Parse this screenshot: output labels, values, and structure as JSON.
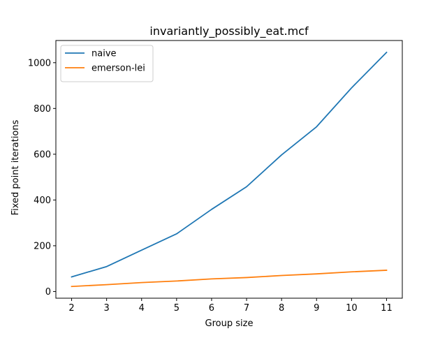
{
  "chart_data": {
    "type": "line",
    "title": "invariantly_possibly_eat.mcf",
    "xlabel": "Group size",
    "ylabel": "Fixed point iterations",
    "x": [
      2,
      3,
      4,
      5,
      6,
      7,
      8,
      9,
      10,
      11
    ],
    "xlim": [
      1.55,
      11.45
    ],
    "ylim": [
      -29.2,
      1097
    ],
    "xticks": [
      2,
      3,
      4,
      5,
      6,
      7,
      8,
      9,
      10,
      11
    ],
    "yticks": [
      0,
      200,
      400,
      600,
      800,
      1000
    ],
    "grid": false,
    "legend_position": "top-left",
    "series": [
      {
        "name": "naive",
        "color": "#1f77b4",
        "values": [
          64,
          109,
          181,
          252,
          359,
          458,
          597,
          720,
          890,
          1045
        ]
      },
      {
        "name": "emerson-lei",
        "color": "#ff7f0e",
        "values": [
          22,
          30,
          39,
          46,
          55,
          61,
          70,
          77,
          86,
          93
        ]
      }
    ]
  }
}
